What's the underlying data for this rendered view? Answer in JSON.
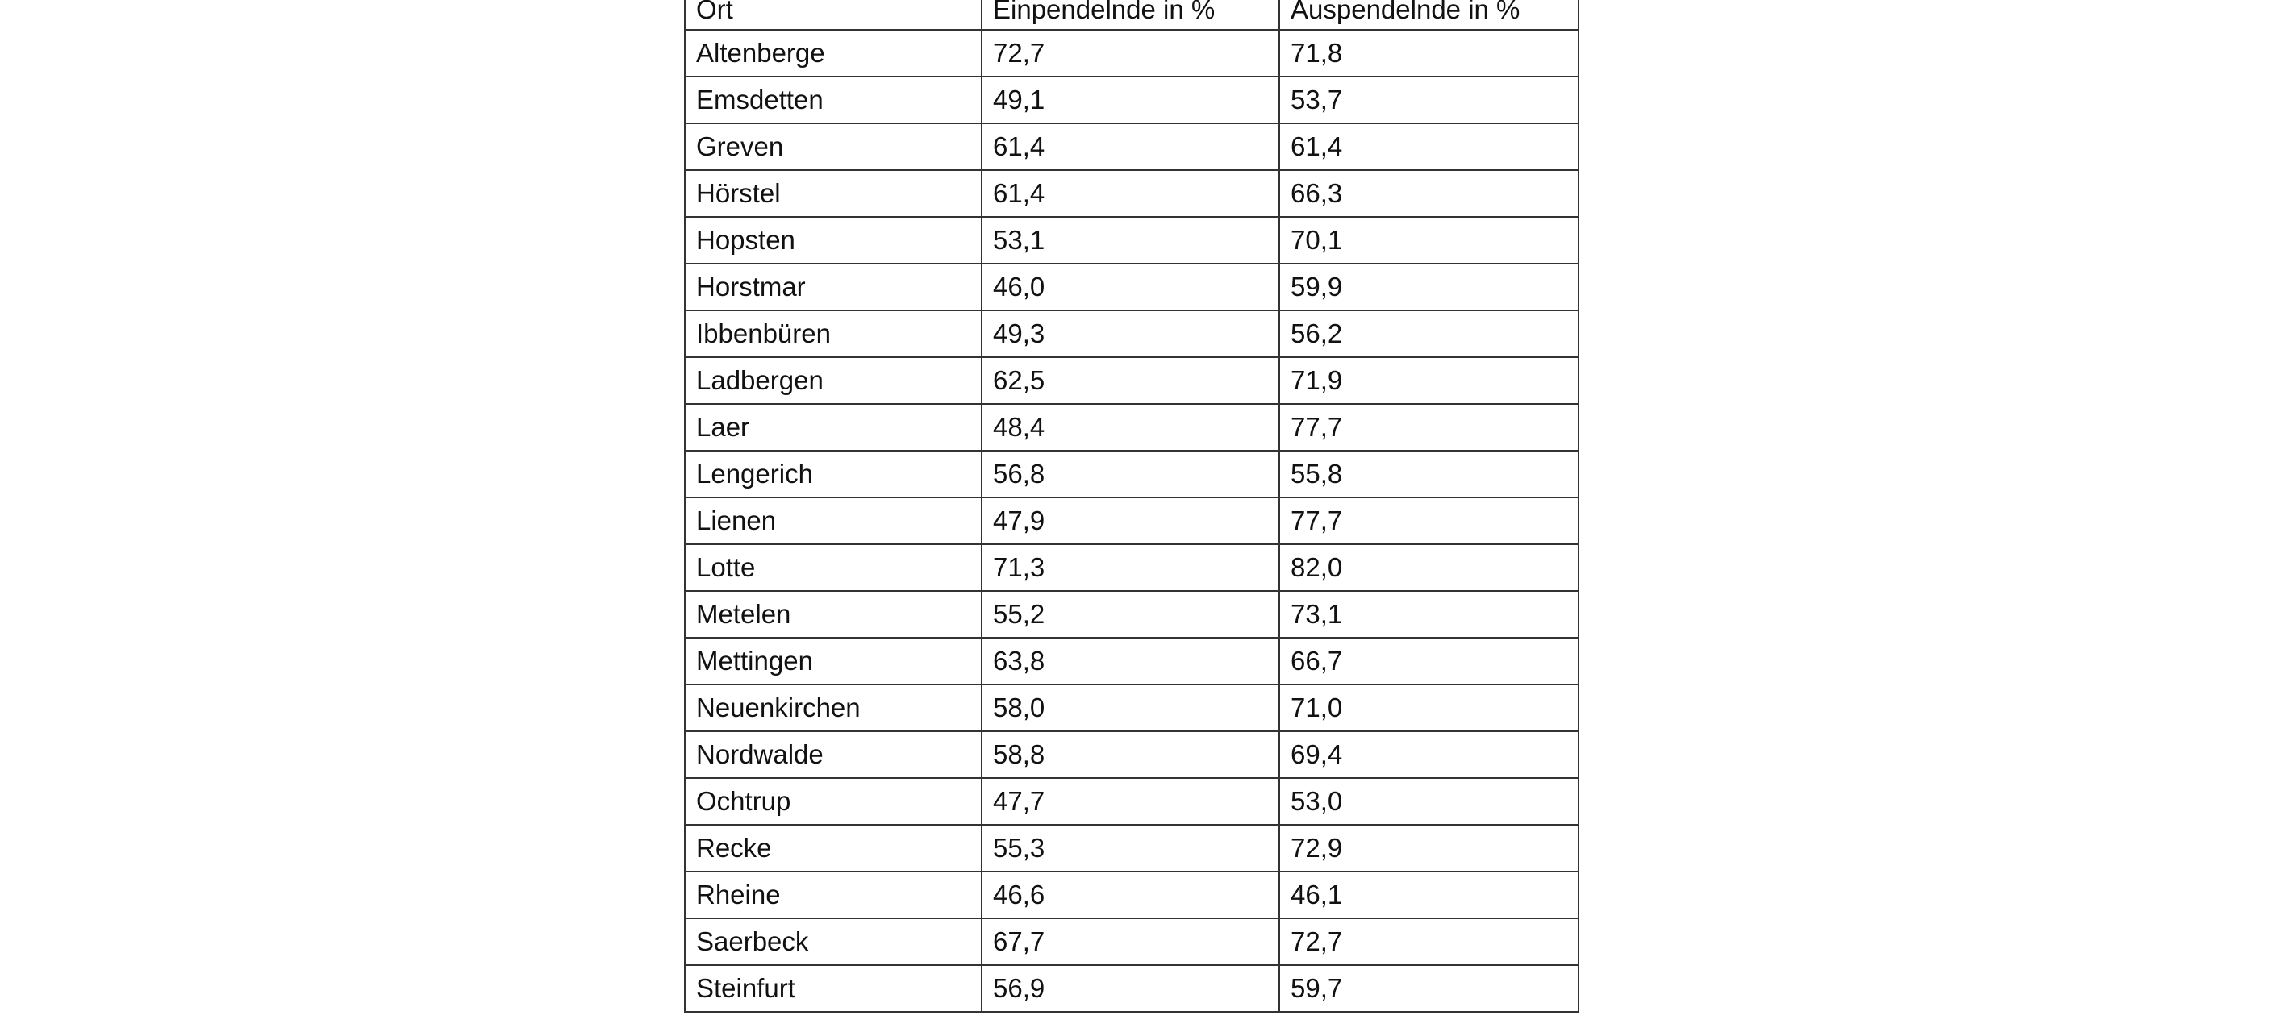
{
  "table": {
    "headers": [
      "Ort",
      "Einpendelnde in %",
      "Auspendelnde in %"
    ],
    "rows": [
      [
        "Altenberge",
        "72,7",
        "71,8"
      ],
      [
        "Emsdetten",
        "49,1",
        "53,7"
      ],
      [
        "Greven",
        "61,4",
        "61,4"
      ],
      [
        "Hörstel",
        "61,4",
        "66,3"
      ],
      [
        "Hopsten",
        "53,1",
        "70,1"
      ],
      [
        "Horstmar",
        "46,0",
        "59,9"
      ],
      [
        "Ibbenbüren",
        "49,3",
        "56,2"
      ],
      [
        "Ladbergen",
        "62,5",
        "71,9"
      ],
      [
        "Laer",
        "48,4",
        "77,7"
      ],
      [
        "Lengerich",
        "56,8",
        "55,8"
      ],
      [
        "Lienen",
        "47,9",
        "77,7"
      ],
      [
        "Lotte",
        "71,3",
        "82,0"
      ],
      [
        "Metelen",
        "55,2",
        "73,1"
      ],
      [
        "Mettingen",
        "63,8",
        "66,7"
      ],
      [
        "Neuenkirchen",
        "58,0",
        "71,0"
      ],
      [
        "Nordwalde",
        "58,8",
        "69,4"
      ],
      [
        "Ochtrup",
        "47,7",
        "53,0"
      ],
      [
        "Recke",
        "55,3",
        "72,9"
      ],
      [
        "Rheine",
        "46,6",
        "46,1"
      ],
      [
        "Saerbeck",
        "67,7",
        "72,7"
      ],
      [
        "Steinfurt",
        "56,9",
        "59,7"
      ]
    ]
  }
}
